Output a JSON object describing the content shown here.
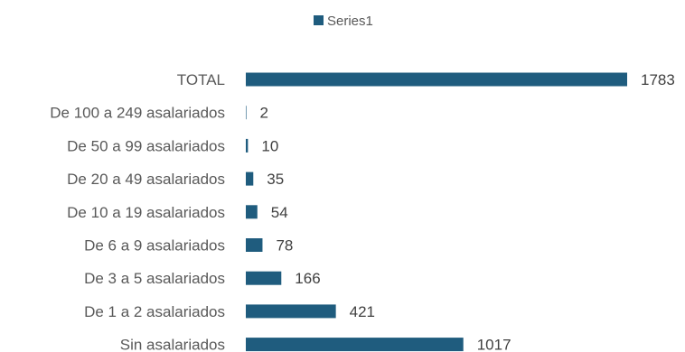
{
  "chart_data": {
    "type": "bar",
    "orientation": "horizontal",
    "categories": [
      "TOTAL",
      "De 100 a 249 asalariados",
      "De 50 a 99 asalariados",
      "De 20 a 49 asalariados",
      "De 10 a 19 asalariados",
      "De 6 a 9 asalariados",
      "De 3 a 5 asalariados",
      "De 1 a 2 asalariados",
      "Sin asalariados"
    ],
    "series": [
      {
        "name": "Series1",
        "values": [
          1783,
          2,
          10,
          35,
          54,
          78,
          166,
          421,
          1017
        ]
      }
    ],
    "xlim": [
      0,
      1783
    ],
    "legend_position": "top",
    "grid": false,
    "color": "#1f5c7e"
  }
}
